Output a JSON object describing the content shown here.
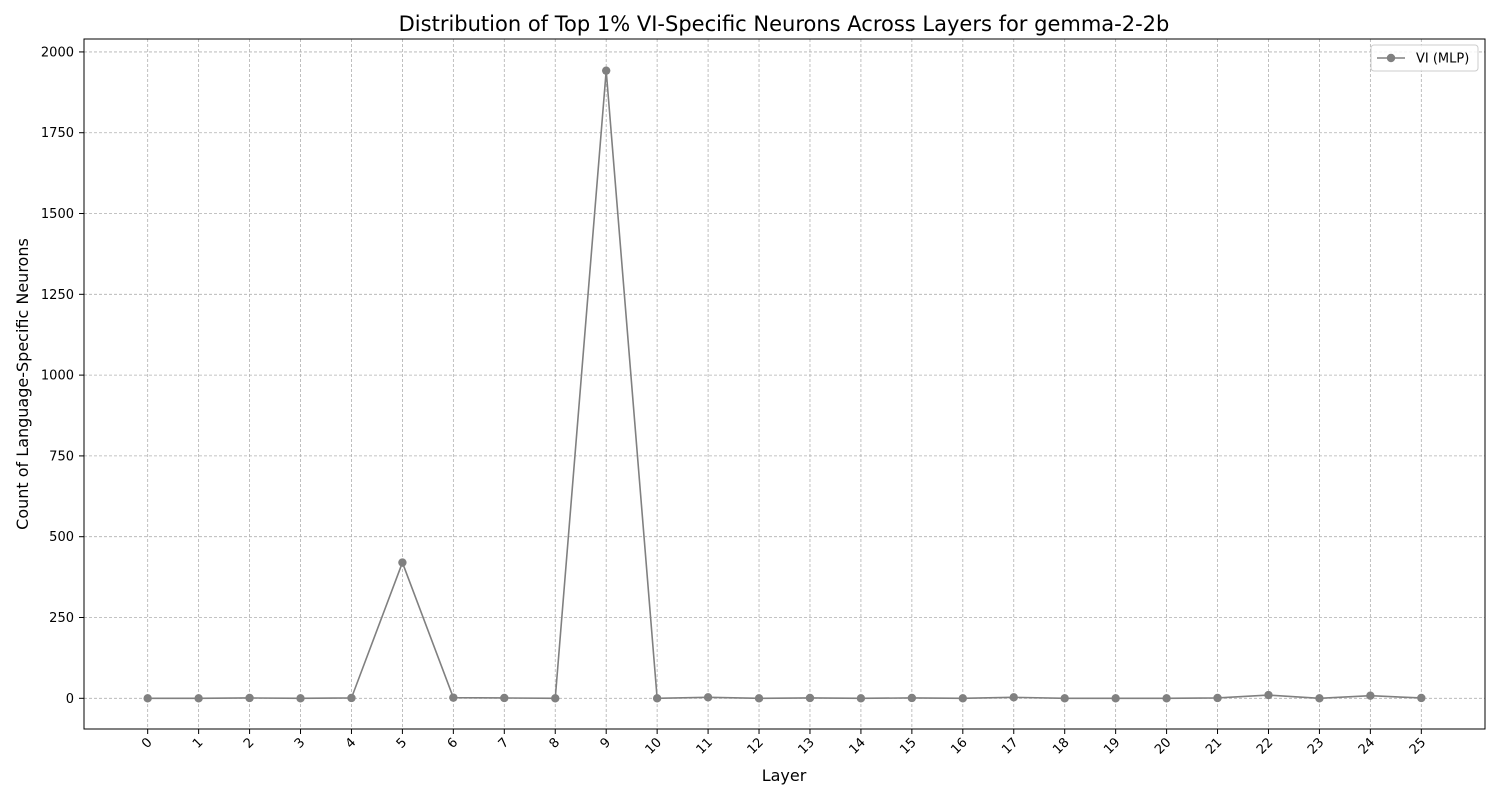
{
  "chart_data": {
    "type": "line",
    "title": "Distribution of Top 1% VI-Specific Neurons Across Layers for gemma-2-2b",
    "xlabel": "Layer",
    "ylabel": "Count of Language-Specific Neurons",
    "x": [
      0,
      1,
      2,
      3,
      4,
      5,
      6,
      7,
      8,
      9,
      10,
      11,
      12,
      13,
      14,
      15,
      16,
      17,
      18,
      19,
      20,
      21,
      22,
      23,
      24,
      25
    ],
    "xticklabels": [
      "0",
      "1",
      "2",
      "3",
      "4",
      "5",
      "6",
      "7",
      "8",
      "9",
      "10",
      "11",
      "12",
      "13",
      "14",
      "15",
      "16",
      "17",
      "18",
      "19",
      "20",
      "21",
      "22",
      "23",
      "24",
      "25"
    ],
    "yticks": [
      0,
      250,
      500,
      750,
      1000,
      1250,
      1500,
      1750,
      2000
    ],
    "yticklabels": [
      "0",
      "250",
      "500",
      "750",
      "1000",
      "1250",
      "1500",
      "1750",
      "2000"
    ],
    "ylim": [
      -95,
      2040
    ],
    "xlim": [
      -1.25,
      26.25
    ],
    "grid": true,
    "legend_position": "top-right",
    "series": [
      {
        "name": "VI (MLP)",
        "color": "#808080",
        "marker": "circle",
        "values": [
          0,
          0,
          1,
          0,
          1,
          420,
          2,
          1,
          0,
          1942,
          0,
          3,
          0,
          1,
          0,
          1,
          0,
          3,
          0,
          0,
          0,
          1,
          10,
          0,
          8,
          1
        ]
      }
    ]
  }
}
